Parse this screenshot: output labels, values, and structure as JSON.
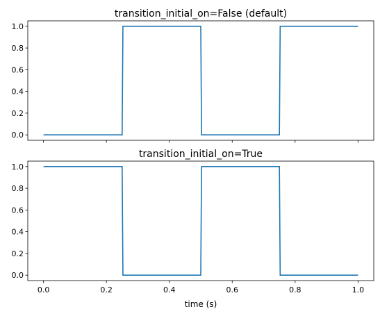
{
  "chart_data": [
    {
      "type": "line",
      "title": "transition_initial_on=False (default)",
      "xlabel": "",
      "ylabel": "",
      "xlim": [
        -0.05,
        1.05
      ],
      "ylim": [
        -0.05,
        1.05
      ],
      "xticks": [
        0.0,
        0.2,
        0.4,
        0.6,
        0.8,
        1.0
      ],
      "xtick_labels_visible": false,
      "yticks": [
        0.0,
        0.2,
        0.4,
        0.6,
        0.8,
        1.0
      ],
      "ytick_labels": [
        "0.0",
        "0.2",
        "0.4",
        "0.6",
        "0.8",
        "1.0"
      ],
      "grid": false,
      "series": [
        {
          "color": "#1f77b4",
          "x": [
            0.0,
            0.25,
            0.2525,
            0.5,
            0.5025,
            0.75,
            0.7525,
            1.0
          ],
          "y": [
            0,
            0,
            1,
            1,
            0,
            0,
            1,
            1
          ]
        }
      ]
    },
    {
      "type": "line",
      "title": "transition_initial_on=True",
      "xlabel": "time (s)",
      "ylabel": "",
      "xlim": [
        -0.05,
        1.05
      ],
      "ylim": [
        -0.05,
        1.05
      ],
      "xticks": [
        0.0,
        0.2,
        0.4,
        0.6,
        0.8,
        1.0
      ],
      "xtick_labels": [
        "0.0",
        "0.2",
        "0.4",
        "0.6",
        "0.8",
        "1.0"
      ],
      "xtick_labels_visible": true,
      "yticks": [
        0.0,
        0.2,
        0.4,
        0.6,
        0.8,
        1.0
      ],
      "ytick_labels": [
        "0.0",
        "0.2",
        "0.4",
        "0.6",
        "0.8",
        "1.0"
      ],
      "grid": false,
      "series": [
        {
          "color": "#1f77b4",
          "x": [
            0.0,
            0.25,
            0.2525,
            0.5,
            0.5025,
            0.75,
            0.7525,
            1.0
          ],
          "y": [
            1,
            1,
            0,
            0,
            1,
            1,
            0,
            0
          ]
        }
      ]
    }
  ]
}
